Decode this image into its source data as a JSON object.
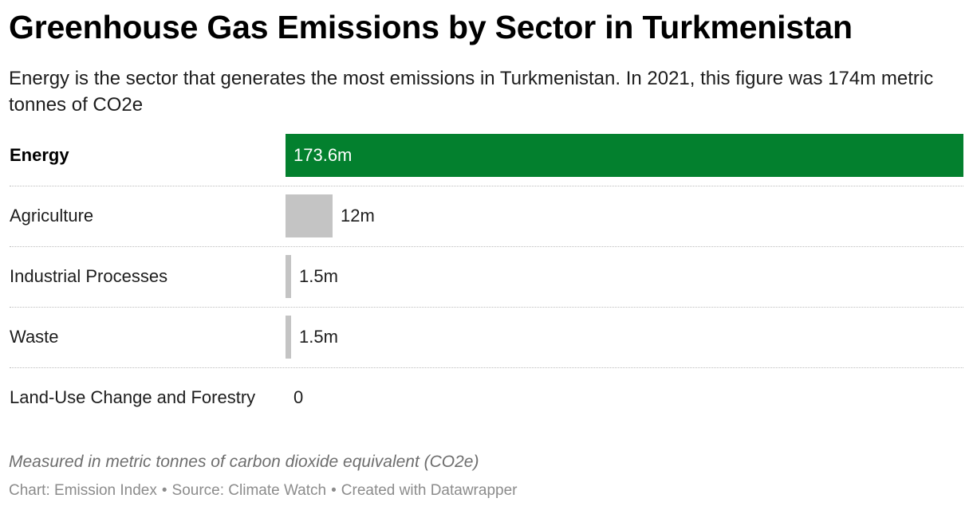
{
  "title": "Greenhouse Gas Emissions by Sector in Turkmenistan",
  "subtitle": "Energy is the sector that generates the most emissions in Turkmenistan. In 2021, this figure was 174m metric tonnes of CO2e",
  "notes": "Measured in metric tonnes of carbon dioxide equivalent (CO2e)",
  "footer": {
    "chart": "Chart: Emission Index",
    "separator": "•",
    "source": "Source: Climate Watch",
    "credit": "Created with Datawrapper"
  },
  "colors": {
    "highlight": "#03802e",
    "default": "#c4c4c4"
  },
  "chart_data": {
    "type": "bar",
    "orientation": "horizontal",
    "categories": [
      "Energy",
      "Agriculture",
      "Industrial Processes",
      "Waste",
      "Land-Use Change and Forestry"
    ],
    "values": [
      173.6,
      12,
      1.5,
      1.5,
      0
    ],
    "value_labels": [
      "173.6m",
      "12m",
      "1.5m",
      "1.5m",
      "0"
    ],
    "highlighted": [
      "Energy"
    ],
    "xlim": [
      0,
      173.6
    ],
    "grid": false,
    "legend": "none"
  }
}
